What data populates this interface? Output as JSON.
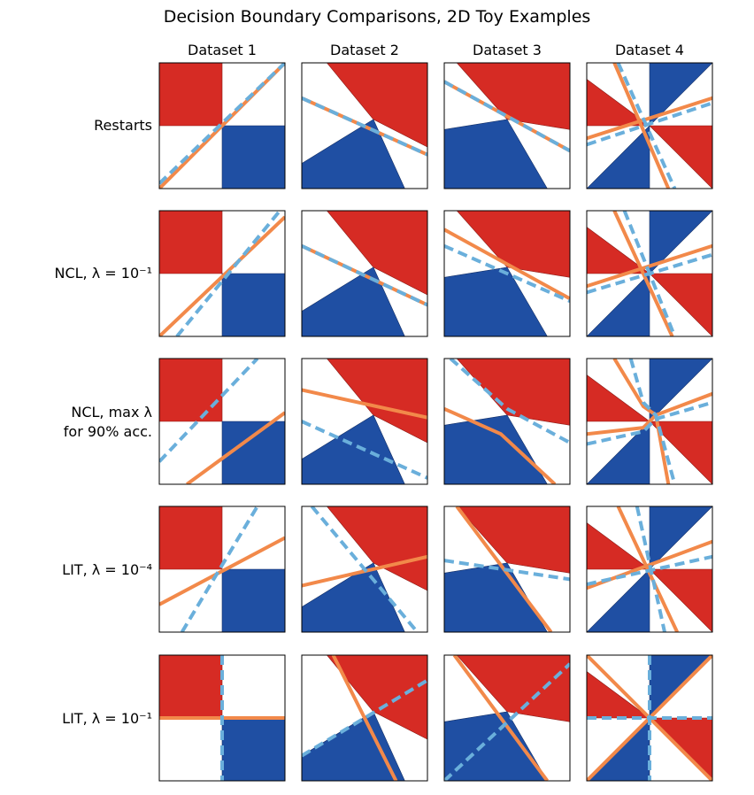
{
  "title": "Decision Boundary Comparisons, 2D Toy Examples",
  "columns": [
    "Dataset 1",
    "Dataset 2",
    "Dataset 3",
    "Dataset 4"
  ],
  "rows": [
    {
      "label": "Restarts",
      "label2": ""
    },
    {
      "label": "NCL, λ = 10⁻¹",
      "label2": ""
    },
    {
      "label": "NCL, max λ",
      "label2": "for 90% acc."
    },
    {
      "label": "LIT, λ = 10⁻⁴",
      "label2": ""
    },
    {
      "label": "LIT, λ = 10⁻¹",
      "label2": ""
    }
  ],
  "colors": {
    "red_class": "#d62b24",
    "blue_class": "#1f4fa3",
    "orange_boundary": "#f2894a",
    "blue_boundary": "#6aafdb"
  },
  "chart_data": {
    "type": "scatter",
    "layout": "grid",
    "xlim": [
      0,
      1
    ],
    "ylim": [
      0,
      1
    ],
    "grid": false,
    "datasets": [
      {
        "name": "Dataset 1",
        "red_regions": [
          [
            [
              0,
              1
            ],
            [
              0.5,
              1
            ],
            [
              0.5,
              0.5
            ],
            [
              0,
              0.5
            ]
          ]
        ],
        "blue_regions": [
          [
            [
              0.5,
              0.5
            ],
            [
              1,
              0.5
            ],
            [
              1,
              0
            ],
            [
              0.5,
              0
            ]
          ]
        ]
      },
      {
        "name": "Dataset 2",
        "red_regions": [
          [
            [
              0.2,
              1
            ],
            [
              1,
              1
            ],
            [
              1,
              0.33
            ],
            [
              0.57,
              0.55
            ]
          ]
        ],
        "blue_regions": [
          [
            [
              0,
              0.2
            ],
            [
              0.57,
              0.55
            ],
            [
              0.82,
              0
            ],
            [
              0,
              0
            ]
          ]
        ]
      },
      {
        "name": "Dataset 3",
        "red_regions": [
          [
            [
              0.1,
              1
            ],
            [
              1,
              1
            ],
            [
              1,
              0.47
            ],
            [
              0.5,
              0.55
            ]
          ]
        ],
        "blue_regions": [
          [
            [
              0,
              0.47
            ],
            [
              0.5,
              0.55
            ],
            [
              0.82,
              0
            ],
            [
              0,
              0
            ]
          ]
        ]
      },
      {
        "name": "Dataset 4",
        "red_regions": [
          [
            [
              0,
              0.87
            ],
            [
              0.5,
              0.5
            ],
            [
              0,
              0.5
            ]
          ],
          [
            [
              0.5,
              0.5
            ],
            [
              1,
              0.5
            ],
            [
              1,
              0
            ]
          ]
        ],
        "blue_regions": [
          [
            [
              0.5,
              1
            ],
            [
              1,
              1
            ],
            [
              0.5,
              0.5
            ]
          ],
          [
            [
              0,
              0
            ],
            [
              0.5,
              0
            ],
            [
              0.5,
              0.5
            ]
          ]
        ]
      }
    ],
    "panels": [
      [
        {
          "orange": [
            [
              [
                0,
                0
              ],
              [
                1,
                1
              ]
            ]
          ],
          "blue": [
            [
              [
                0,
                0.04
              ],
              [
                1,
                1
              ]
            ]
          ]
        },
        {
          "orange": [
            [
              [
                0,
                0.72
              ],
              [
                1,
                0.27
              ]
            ]
          ],
          "blue": [
            [
              [
                0,
                0.72
              ],
              [
                1,
                0.27
              ]
            ]
          ]
        },
        {
          "orange": [
            [
              [
                0,
                0.85
              ],
              [
                1,
                0.3
              ]
            ]
          ],
          "blue": [
            [
              [
                0,
                0.85
              ],
              [
                1,
                0.3
              ]
            ]
          ]
        },
        {
          "orange": [
            [
              [
                0.22,
                1
              ],
              [
                0.65,
                0
              ]
            ],
            [
              [
                0,
                0.4
              ],
              [
                1,
                0.72
              ]
            ]
          ],
          "blue": [
            [
              [
                0.25,
                1
              ],
              [
                0.7,
                0
              ]
            ],
            [
              [
                0,
                0.35
              ],
              [
                1,
                0.68
              ]
            ]
          ]
        }
      ],
      [
        {
          "orange": [
            [
              [
                0,
                0
              ],
              [
                1,
                0.95
              ]
            ]
          ],
          "blue": [
            [
              [
                0.14,
                0
              ],
              [
                0.96,
                1
              ]
            ]
          ]
        },
        {
          "orange": [
            [
              [
                0,
                0.72
              ],
              [
                1,
                0.25
              ]
            ]
          ],
          "blue": [
            [
              [
                0,
                0.72
              ],
              [
                1,
                0.25
              ]
            ]
          ]
        },
        {
          "orange": [
            [
              [
                0,
                0.85
              ],
              [
                1,
                0.3
              ]
            ]
          ],
          "blue": [
            [
              [
                0,
                0.72
              ],
              [
                1,
                0.28
              ]
            ]
          ]
        },
        {
          "orange": [
            [
              [
                0.22,
                1
              ],
              [
                0.68,
                0
              ]
            ],
            [
              [
                0,
                0.4
              ],
              [
                1,
                0.72
              ]
            ]
          ],
          "blue": [
            [
              [
                0.3,
                1
              ],
              [
                0.7,
                0
              ]
            ],
            [
              [
                0,
                0.35
              ],
              [
                1,
                0.65
              ]
            ]
          ]
        }
      ],
      [
        {
          "orange": [
            [
              [
                0.22,
                0
              ],
              [
                1,
                0.57
              ]
            ]
          ],
          "blue": [
            [
              [
                0,
                0.18
              ],
              [
                0.78,
                1
              ]
            ]
          ]
        },
        {
          "orange": [
            [
              [
                0,
                0.75
              ],
              [
                1,
                0.53
              ]
            ]
          ],
          "blue": [
            [
              [
                0,
                0.5
              ],
              [
                1,
                0.05
              ]
            ]
          ]
        },
        {
          "orange": [
            [
              [
                0,
                0.6
              ],
              [
                0.45,
                0.4
              ],
              [
                0.88,
                0
              ]
            ]
          ],
          "blue": [
            [
              [
                0.05,
                1
              ],
              [
                0.5,
                0.6
              ],
              [
                1,
                0.33
              ]
            ]
          ]
        },
        {
          "orange": [
            [
              [
                0.22,
                1
              ],
              [
                0.45,
                0.62
              ],
              [
                0.55,
                0.55
              ],
              [
                0.65,
                0
              ]
            ],
            [
              [
                0,
                0.4
              ],
              [
                0.45,
                0.45
              ],
              [
                0.55,
                0.55
              ],
              [
                1,
                0.72
              ]
            ]
          ],
          "blue": [
            [
              [
                0.35,
                1
              ],
              [
                0.45,
                0.65
              ],
              [
                0.55,
                0.55
              ],
              [
                0.7,
                0
              ]
            ],
            [
              [
                0,
                0.32
              ],
              [
                0.45,
                0.42
              ],
              [
                0.55,
                0.52
              ],
              [
                1,
                0.65
              ]
            ]
          ]
        }
      ],
      [
        {
          "orange": [
            [
              [
                0,
                0.22
              ],
              [
                1,
                0.75
              ]
            ]
          ],
          "blue": [
            [
              [
                0.18,
                0
              ],
              [
                0.78,
                1
              ]
            ]
          ]
        },
        {
          "orange": [
            [
              [
                0,
                0.37
              ],
              [
                1,
                0.6
              ]
            ]
          ],
          "blue": [
            [
              [
                0.08,
                1
              ],
              [
                0.92,
                0
              ]
            ]
          ]
        },
        {
          "orange": [
            [
              [
                0.1,
                1
              ],
              [
                0.85,
                0
              ]
            ]
          ],
          "blue": [
            [
              [
                0,
                0.57
              ],
              [
                1,
                0.42
              ]
            ]
          ]
        },
        {
          "orange": [
            [
              [
                0.25,
                1
              ],
              [
                0.72,
                0
              ]
            ],
            [
              [
                0,
                0.35
              ],
              [
                1,
                0.72
              ]
            ]
          ],
          "blue": [
            [
              [
                0.4,
                1
              ],
              [
                0.62,
                0
              ]
            ],
            [
              [
                0,
                0.38
              ],
              [
                1,
                0.6
              ]
            ]
          ]
        }
      ],
      [
        {
          "orange": [
            [
              [
                0,
                0.5
              ],
              [
                1,
                0.5
              ]
            ]
          ],
          "blue": [
            [
              [
                0.5,
                1
              ],
              [
                0.5,
                0
              ]
            ]
          ]
        },
        {
          "orange": [
            [
              [
                0.25,
                1
              ],
              [
                0.75,
                0
              ]
            ]
          ],
          "blue": [
            [
              [
                0,
                0.2
              ],
              [
                1,
                0.8
              ]
            ]
          ]
        },
        {
          "orange": [
            [
              [
                0.08,
                1
              ],
              [
                0.82,
                0
              ]
            ]
          ],
          "blue": [
            [
              [
                0,
                0
              ],
              [
                1,
                0.93
              ]
            ]
          ]
        },
        {
          "orange": [
            [
              [
                0,
                1
              ],
              [
                1,
                0
              ]
            ],
            [
              [
                0,
                0
              ],
              [
                1,
                1
              ]
            ]
          ],
          "blue": [
            [
              [
                0.5,
                1
              ],
              [
                0.5,
                0
              ]
            ],
            [
              [
                0,
                0.5
              ],
              [
                1,
                0.5
              ]
            ]
          ]
        }
      ]
    ]
  }
}
